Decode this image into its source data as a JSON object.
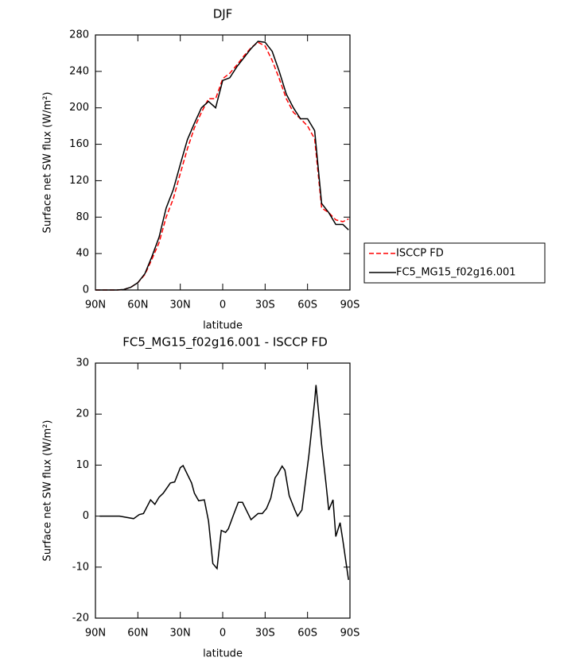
{
  "chart_data": [
    {
      "type": "line",
      "title": "DJF",
      "xlabel": "latitude",
      "ylabel": "Surface net SW flux (W/m²)",
      "x": [
        90,
        85,
        80,
        75,
        70,
        65,
        60,
        55,
        50,
        45,
        40,
        35,
        30,
        25,
        20,
        15,
        10,
        5,
        0,
        -5,
        -10,
        -15,
        -20,
        -25,
        -30,
        -35,
        -40,
        -45,
        -50,
        -55,
        -60,
        -65,
        -70,
        -75,
        -80,
        -85,
        -89
      ],
      "series": [
        {
          "name": "ISCCP FD",
          "color": "#ff0000",
          "style": "dashed",
          "values": [
            0,
            0,
            0,
            0,
            0.5,
            3,
            8,
            17,
            34,
            52,
            80,
            100,
            128,
            155,
            178,
            195,
            210,
            210,
            232,
            238,
            247,
            257,
            266,
            272,
            268,
            252,
            232,
            210,
            195,
            188,
            180,
            166,
            90,
            85,
            77,
            75,
            78
          ]
        },
        {
          "name": "FC5_MG15_f02g16.001",
          "color": "#000000",
          "style": "solid",
          "values": [
            0,
            0,
            0,
            0,
            0.5,
            3,
            8,
            18,
            37,
            58,
            90,
            110,
            138,
            165,
            183,
            200,
            207,
            200,
            230,
            233,
            245,
            255,
            265,
            273,
            272,
            262,
            240,
            215,
            200,
            188,
            188,
            175,
            95,
            85,
            72,
            72,
            66
          ]
        }
      ],
      "xlim": [
        90,
        -90
      ],
      "xticks": [
        {
          "value": 90,
          "label": "90N"
        },
        {
          "value": 60,
          "label": "60N"
        },
        {
          "value": 30,
          "label": "30N"
        },
        0,
        {
          "value": -30,
          "label": "30S"
        },
        {
          "value": -60,
          "label": "60S"
        },
        {
          "value": -90,
          "label": "90S"
        }
      ],
      "ylim": [
        0,
        280
      ],
      "yticks": [
        0,
        40,
        80,
        120,
        160,
        200,
        240,
        280
      ],
      "legend": "right"
    },
    {
      "type": "line",
      "title": "FC5_MG15_f02g16.001 - ISCCP FD",
      "xlabel": "latitude",
      "ylabel": "Surface net SW flux (W/m²)",
      "x": [
        87,
        73,
        63,
        59,
        56,
        51,
        48,
        45,
        42,
        37,
        34,
        30,
        28,
        22,
        20,
        17,
        13,
        10,
        7,
        4,
        1,
        -2,
        -4,
        -8,
        -11,
        -14,
        -20,
        -25,
        -28,
        -31,
        -34,
        -37,
        -39,
        -42,
        -44,
        -47,
        -51,
        -53,
        -56,
        -61,
        -65,
        -66,
        -70,
        -73,
        -75,
        -78,
        -80,
        -83,
        -85,
        -89
      ],
      "series": [
        {
          "color": "#000000",
          "style": "solid",
          "values": [
            0,
            0,
            -0.5,
            0.3,
            0.5,
            3.2,
            2.3,
            3.7,
            4.5,
            6.5,
            6.7,
            9.5,
            9.9,
            6.5,
            4.5,
            3,
            3.2,
            -1,
            -9.3,
            -10.3,
            -2.8,
            -3.2,
            -2.5,
            0.5,
            2.7,
            2.7,
            -0.7,
            0.5,
            0.5,
            1.5,
            3.5,
            7.5,
            8.3,
            9.8,
            9,
            4,
            1.2,
            0,
            1.2,
            12,
            22.5,
            25.7,
            14,
            6.5,
            1.2,
            3.2,
            -4,
            -1.3,
            -4.8,
            -12.5
          ]
        }
      ],
      "xlim": [
        90,
        -90
      ],
      "xticks": [
        {
          "value": 90,
          "label": "90N"
        },
        {
          "value": 60,
          "label": "60N"
        },
        {
          "value": 30,
          "label": "30N"
        },
        0,
        {
          "value": -30,
          "label": "30S"
        },
        {
          "value": -60,
          "label": "60S"
        },
        {
          "value": -90,
          "label": "90S"
        }
      ],
      "ylim": [
        -20,
        30
      ],
      "yticks": [
        -20,
        -10,
        0,
        10,
        20,
        30
      ]
    }
  ]
}
